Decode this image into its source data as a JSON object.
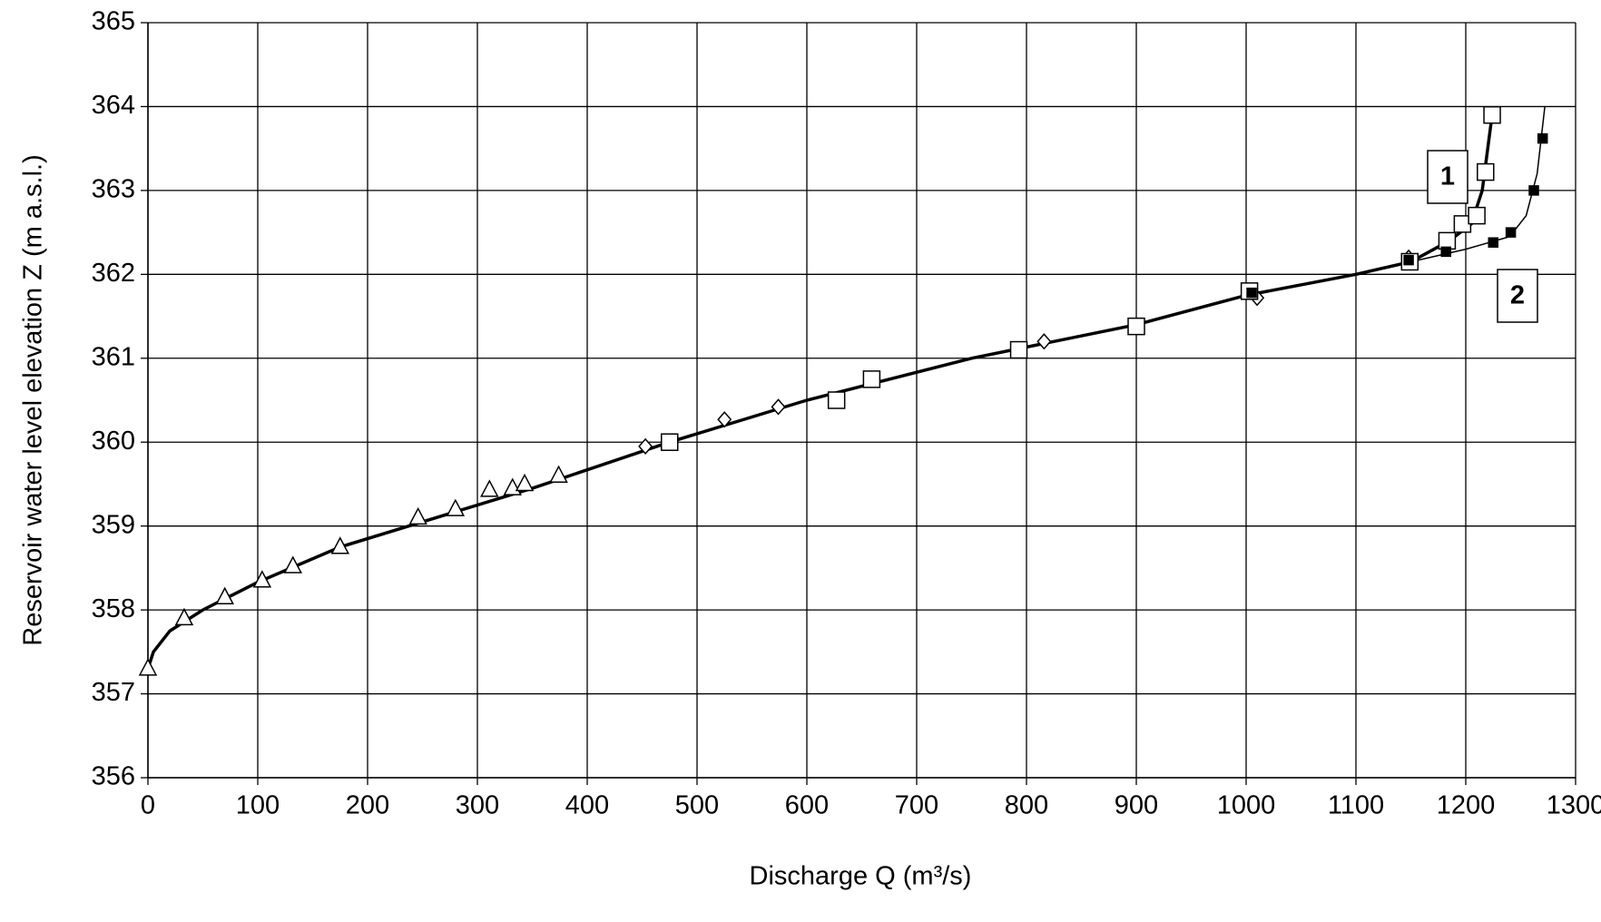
{
  "chart_data": {
    "type": "scatter",
    "x_label": "Discharge Q (m³/s)",
    "y_label": "Reservoir water level elevation Z (m a.s.l.)",
    "annotations": [
      "1",
      "2"
    ],
    "xlim": [
      0,
      1300
    ],
    "ylim": [
      356,
      365
    ],
    "xticks": [
      0,
      100,
      200,
      300,
      400,
      500,
      600,
      700,
      800,
      900,
      1000,
      1100,
      1200,
      1300
    ],
    "yticks": [
      356,
      357,
      358,
      359,
      360,
      361,
      362,
      363,
      364,
      365
    ],
    "grid": true,
    "series": [
      {
        "marker": "none",
        "line_width": 3.5,
        "color": "#000000",
        "x": [
          0,
          5,
          20,
          50,
          100,
          175,
          250,
          350,
          475,
          600,
          750,
          900,
          1000,
          1100,
          1150,
          1185,
          1205,
          1215,
          1220,
          1225
        ],
        "values": [
          357.3,
          357.5,
          357.75,
          358.0,
          358.33,
          358.75,
          359.05,
          359.45,
          360.0,
          360.5,
          361.0,
          361.4,
          361.75,
          362.0,
          362.15,
          362.4,
          362.6,
          363.0,
          363.5,
          364.0
        ]
      },
      {
        "marker": "none",
        "line_width": 1.5,
        "color": "#000000",
        "x": [
          1100,
          1150,
          1200,
          1240,
          1255,
          1265,
          1272
        ],
        "values": [
          362.0,
          362.15,
          362.3,
          362.45,
          362.7,
          363.2,
          364.0
        ]
      },
      {
        "marker": "triangle",
        "color": "#000000",
        "x": [
          0,
          33,
          70,
          104,
          132,
          175,
          246,
          280,
          311,
          332,
          343,
          374
        ],
        "values": [
          357.3,
          357.9,
          358.15,
          358.35,
          358.52,
          358.75,
          359.1,
          359.2,
          359.43,
          359.45,
          359.5,
          359.6
        ]
      },
      {
        "marker": "diamond",
        "color": "#000000",
        "x": [
          453,
          525,
          574,
          816,
          1010,
          1148
        ],
        "values": [
          359.95,
          360.27,
          360.42,
          361.2,
          361.72,
          362.2
        ]
      },
      {
        "marker": "square",
        "color": "#000000",
        "x": [
          475,
          627,
          659,
          793,
          900,
          1003,
          1149,
          1183,
          1197,
          1210,
          1218,
          1224
        ],
        "values": [
          360.0,
          360.5,
          360.75,
          361.1,
          361.38,
          361.8,
          362.15,
          362.4,
          362.6,
          362.7,
          363.22,
          363.9
        ]
      },
      {
        "marker": "filled-square",
        "color": "#000000",
        "x": [
          1005,
          1148,
          1182,
          1225,
          1241,
          1262,
          1270
        ],
        "values": [
          361.78,
          362.17,
          362.27,
          362.38,
          362.5,
          363.0,
          363.62
        ]
      }
    ]
  }
}
